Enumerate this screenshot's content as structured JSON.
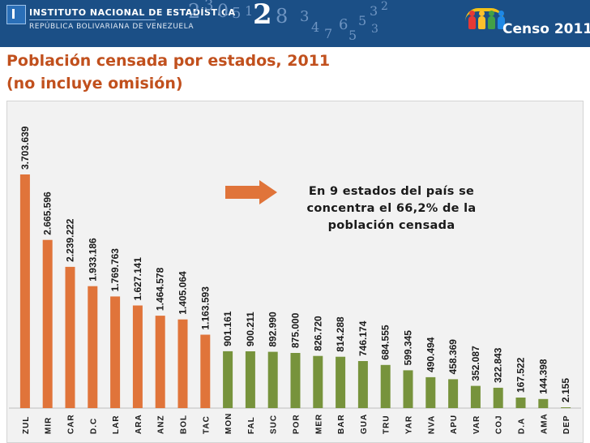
{
  "header": {
    "institution_line1": "INSTITUTO NACIONAL DE ESTADÍSTICA",
    "institution_line2": "REPÚBLICA BOLIVARIANA DE VENEZUELA",
    "census_logo_text": "Censo 2011"
  },
  "chart_data": {
    "type": "bar",
    "title": "Población censada por estados, 2011",
    "subtitle": "(no incluye omisión)",
    "xlabel": "",
    "ylabel": "",
    "categories": [
      "ZUL",
      "MIR",
      "CAR",
      "D.C",
      "LAR",
      "ARA",
      "ANZ",
      "BOL",
      "TAC",
      "MON",
      "FAL",
      "SUC",
      "POR",
      "MER",
      "BAR",
      "GUA",
      "TRU",
      "YAR",
      "NVA",
      "APU",
      "VAR",
      "COJ",
      "D.A",
      "AMA",
      "DEP"
    ],
    "values": [
      3703639,
      2665596,
      2239222,
      1933186,
      1769763,
      1627141,
      1464578,
      1405064,
      1163593,
      901161,
      900211,
      892990,
      875000,
      826720,
      814288,
      746174,
      684555,
      599345,
      490494,
      458369,
      352087,
      322843,
      167522,
      144398,
      2155
    ],
    "value_labels": [
      "3.703.639",
      "2.665.596",
      "2.239.222",
      "1.933.186",
      "1.769.763",
      "1.627.141",
      "1.464.578",
      "1.405.064",
      "1.163.593",
      "901.161",
      "900.211",
      "892.990",
      "875.000",
      "826.720",
      "814.288",
      "746.174",
      "684.555",
      "599.345",
      "490.494",
      "458.369",
      "352.087",
      "322.843",
      "167.522",
      "144.398",
      "2.155"
    ],
    "colors": {
      "top9": "#e0743a",
      "rest": "#77933c"
    },
    "highlighted_count": 9,
    "ylim": [
      0,
      3703639
    ],
    "grid": false,
    "legend": "none",
    "annotation": {
      "lines": [
        "En 9 estados del país se",
        "concentra el 66,2% de la",
        "población censada"
      ]
    }
  }
}
